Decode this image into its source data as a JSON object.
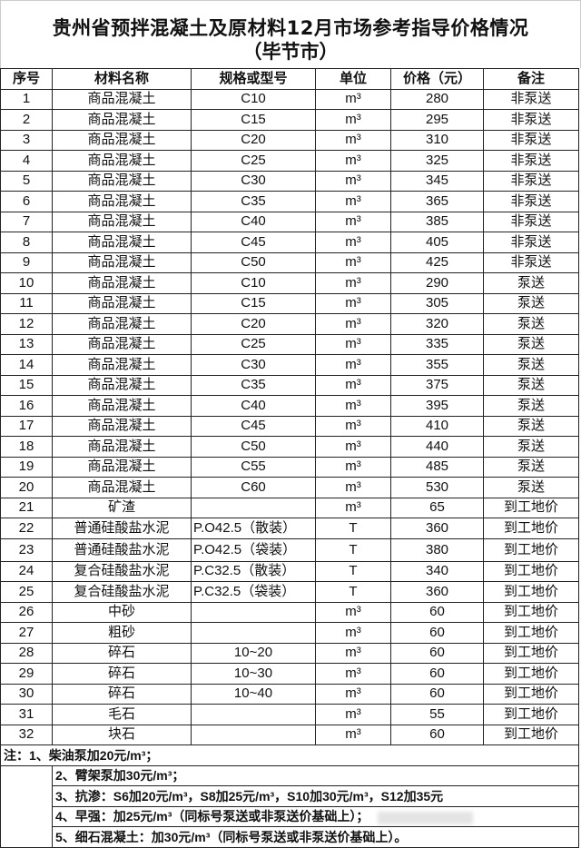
{
  "title": {
    "line1": "贵州省预拌混凝土及原材料12月市场参考指导价格情况",
    "line2": "（毕节市）"
  },
  "headers": [
    "序号",
    "材料名称",
    "规格或型号",
    "单位",
    "价格（元）",
    "备注"
  ],
  "rows": [
    [
      "1",
      "商品混凝土",
      "C10",
      "m³",
      "280",
      "非泵送"
    ],
    [
      "2",
      "商品混凝土",
      "C15",
      "m³",
      "295",
      "非泵送"
    ],
    [
      "3",
      "商品混凝土",
      "C20",
      "m³",
      "310",
      "非泵送"
    ],
    [
      "4",
      "商品混凝土",
      "C25",
      "m³",
      "325",
      "非泵送"
    ],
    [
      "5",
      "商品混凝土",
      "C30",
      "m³",
      "345",
      "非泵送"
    ],
    [
      "6",
      "商品混凝土",
      "C35",
      "m³",
      "365",
      "非泵送"
    ],
    [
      "7",
      "商品混凝土",
      "C40",
      "m³",
      "385",
      "非泵送"
    ],
    [
      "8",
      "商品混凝土",
      "C45",
      "m³",
      "405",
      "非泵送"
    ],
    [
      "9",
      "商品混凝土",
      "C50",
      "m³",
      "425",
      "非泵送"
    ],
    [
      "10",
      "商品混凝土",
      "C10",
      "m³",
      "290",
      "泵送"
    ],
    [
      "11",
      "商品混凝土",
      "C15",
      "m³",
      "305",
      "泵送"
    ],
    [
      "12",
      "商品混凝土",
      "C20",
      "m³",
      "320",
      "泵送"
    ],
    [
      "13",
      "商品混凝土",
      "C25",
      "m³",
      "335",
      "泵送"
    ],
    [
      "14",
      "商品混凝土",
      "C30",
      "m³",
      "355",
      "泵送"
    ],
    [
      "15",
      "商品混凝土",
      "C35",
      "m³",
      "375",
      "泵送"
    ],
    [
      "16",
      "商品混凝土",
      "C40",
      "m³",
      "395",
      "泵送"
    ],
    [
      "17",
      "商品混凝土",
      "C45",
      "m³",
      "410",
      "泵送"
    ],
    [
      "18",
      "商品混凝土",
      "C50",
      "m³",
      "440",
      "泵送"
    ],
    [
      "19",
      "商品混凝土",
      "C55",
      "m³",
      "485",
      "泵送"
    ],
    [
      "20",
      "商品混凝土",
      "C60",
      "m³",
      "530",
      "泵送"
    ],
    [
      "21",
      "矿渣",
      "",
      "m³",
      "65",
      "到工地价"
    ],
    [
      "22",
      "普通硅酸盐水泥",
      "P.O42.5（散装）",
      "T",
      "360",
      "到工地价"
    ],
    [
      "23",
      "普通硅酸盐水泥",
      "P.O42.5（袋装）",
      "T",
      "380",
      "到工地价"
    ],
    [
      "24",
      "复合硅酸盐水泥",
      "P.C32.5（散装）",
      "T",
      "340",
      "到工地价"
    ],
    [
      "25",
      "复合硅酸盐水泥",
      "P.C32.5（袋装）",
      "T",
      "360",
      "到工地价"
    ],
    [
      "26",
      "中砂",
      "",
      "m³",
      "60",
      "到工地价"
    ],
    [
      "27",
      "粗砂",
      "",
      "m³",
      "60",
      "到工地价"
    ],
    [
      "28",
      "碎石",
      "10~20",
      "m³",
      "60",
      "到工地价"
    ],
    [
      "29",
      "碎石",
      "10~30",
      "m³",
      "60",
      "到工地价"
    ],
    [
      "30",
      "碎石",
      "10~40",
      "m³",
      "60",
      "到工地价"
    ],
    [
      "31",
      "毛石",
      "",
      "m³",
      "55",
      "到工地价"
    ],
    [
      "32",
      "块石",
      "",
      "m³",
      "60",
      "到工地价"
    ]
  ],
  "notes": [
    "注：1、柴油泵加20元/m³；",
    "2、臂架泵加30元/m³；",
    "3、抗渗：S6加20元/m³，S8加25元/m³，S10加30元/m³，S12加35元",
    "4、早强：加25元/m³（同标号泵送或非泵送价基础上）；",
    "5、细石混凝土：加30元/m³（同标号泵送或非泵送价基础上）。"
  ]
}
